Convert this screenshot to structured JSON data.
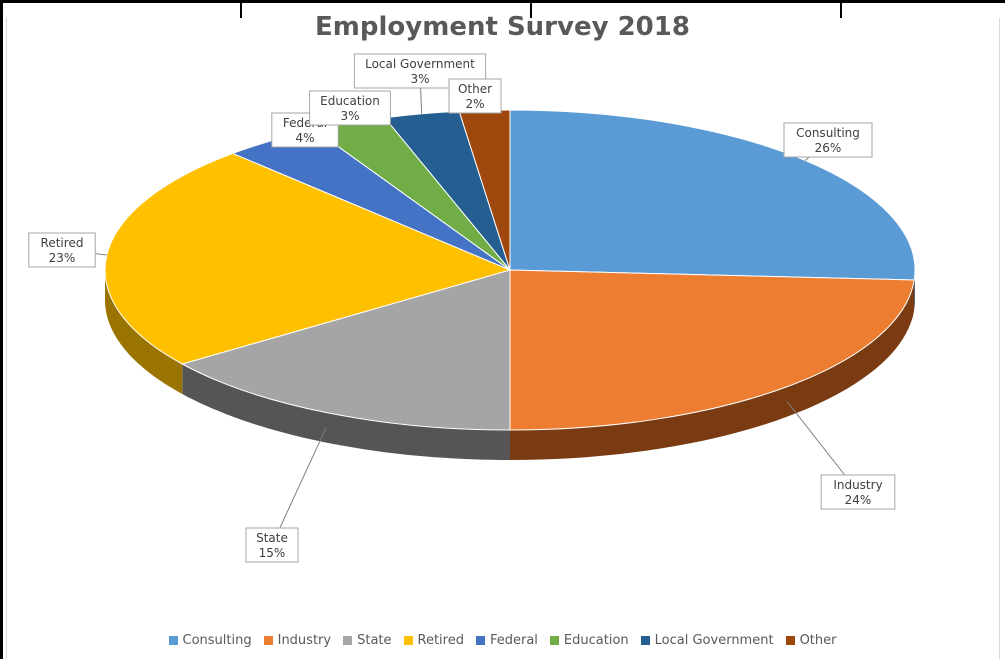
{
  "chart_data": {
    "type": "pie",
    "title": "Employment Survey 2018",
    "style": "3d",
    "legend_position": "bottom",
    "slices": [
      {
        "label": "Consulting",
        "value": 26,
        "percent_label": "26%",
        "color": "#5b9bd5",
        "side_color": "#34597b"
      },
      {
        "label": "Industry",
        "value": 24,
        "percent_label": "24%",
        "color": "#ed7d31",
        "side_color": "#7a3b12"
      },
      {
        "label": "State",
        "value": 15,
        "percent_label": "15%",
        "color": "#a5a5a5",
        "side_color": "#555555"
      },
      {
        "label": "Retired",
        "value": 23,
        "percent_label": "23%",
        "color": "#ffc000",
        "side_color": "#9a7400"
      },
      {
        "label": "Federal",
        "value": 4,
        "percent_label": "4%",
        "color": "#4472c4",
        "side_color": "#2a477a"
      },
      {
        "label": "Education",
        "value": 3,
        "percent_label": "3%",
        "color": "#70ad47",
        "side_color": "#436a29"
      },
      {
        "label": "Local Government",
        "value": 3,
        "percent_label": "3%",
        "color": "#255e91",
        "side_color": "#153754"
      },
      {
        "label": "Other",
        "value": 2,
        "percent_label": "2%",
        "color": "#9e480e",
        "side_color": "#5c2907"
      }
    ]
  }
}
